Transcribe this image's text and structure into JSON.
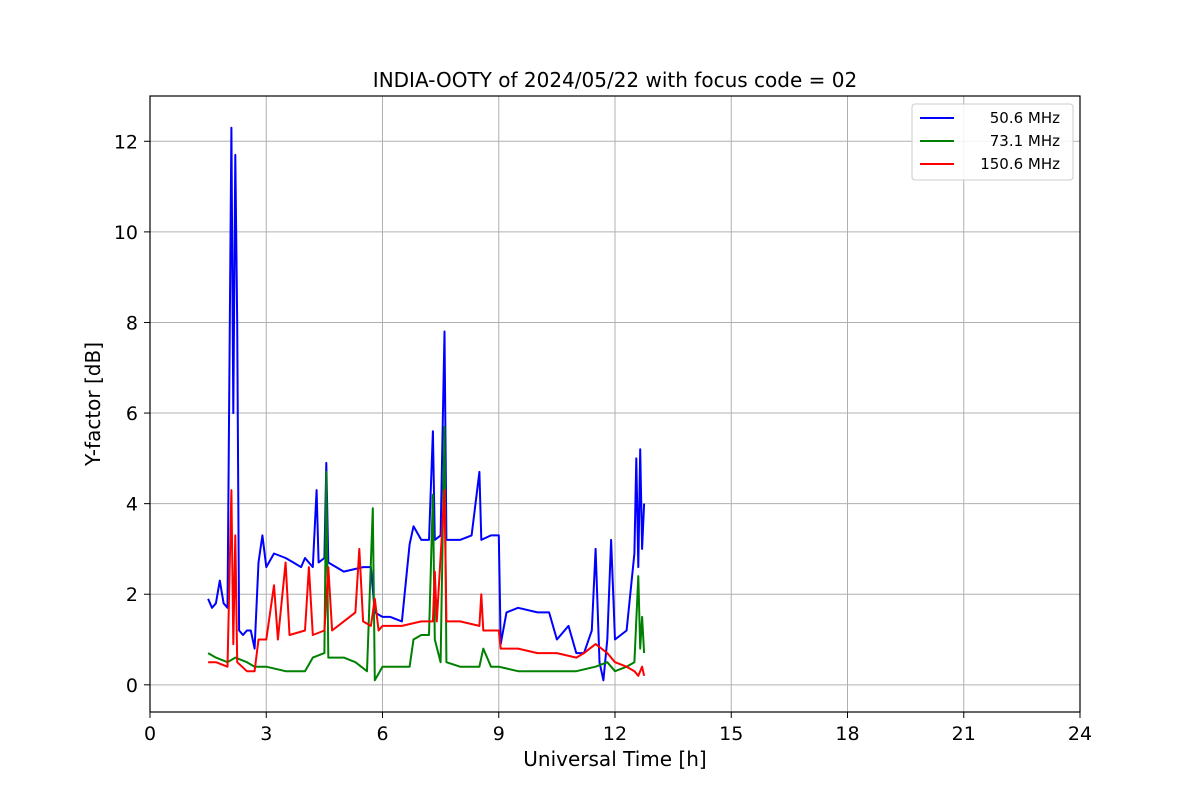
{
  "chart_data": {
    "type": "line",
    "title": "INDIA-OOTY of 2024/05/22 with focus code = 02",
    "xlabel": "Universal Time [h]",
    "ylabel": "Y-factor [dB]",
    "xlim": [
      0,
      24
    ],
    "ylim": [
      -0.6,
      13.0
    ],
    "xticks": [
      0,
      3,
      6,
      9,
      12,
      15,
      18,
      21,
      24
    ],
    "yticks": [
      0,
      2,
      4,
      6,
      8,
      10,
      12
    ],
    "grid": true,
    "legend_position": "upper right",
    "series": [
      {
        "name": "50.6 MHz",
        "color": "#0000ff",
        "points": [
          [
            1.5,
            1.9
          ],
          [
            1.6,
            1.7
          ],
          [
            1.7,
            1.8
          ],
          [
            1.8,
            2.3
          ],
          [
            1.9,
            1.8
          ],
          [
            2.0,
            1.7
          ],
          [
            2.1,
            12.3
          ],
          [
            2.15,
            6.0
          ],
          [
            2.2,
            11.7
          ],
          [
            2.25,
            8.0
          ],
          [
            2.3,
            1.2
          ],
          [
            2.4,
            1.1
          ],
          [
            2.5,
            1.2
          ],
          [
            2.6,
            1.2
          ],
          [
            2.7,
            0.8
          ],
          [
            2.8,
            2.7
          ],
          [
            2.9,
            3.3
          ],
          [
            3.0,
            2.6
          ],
          [
            3.2,
            2.9
          ],
          [
            3.5,
            2.8
          ],
          [
            3.7,
            2.7
          ],
          [
            3.9,
            2.6
          ],
          [
            4.0,
            2.8
          ],
          [
            4.2,
            2.6
          ],
          [
            4.3,
            4.3
          ],
          [
            4.35,
            2.7
          ],
          [
            4.5,
            2.8
          ],
          [
            4.55,
            4.9
          ],
          [
            4.6,
            2.7
          ],
          [
            5.0,
            2.5
          ],
          [
            5.5,
            2.6
          ],
          [
            5.7,
            2.6
          ],
          [
            5.8,
            1.6
          ],
          [
            6.0,
            1.5
          ],
          [
            6.2,
            1.5
          ],
          [
            6.5,
            1.4
          ],
          [
            6.7,
            3.1
          ],
          [
            6.8,
            3.5
          ],
          [
            7.0,
            3.2
          ],
          [
            7.2,
            3.2
          ],
          [
            7.3,
            5.6
          ],
          [
            7.35,
            3.2
          ],
          [
            7.5,
            3.3
          ],
          [
            7.6,
            7.8
          ],
          [
            7.65,
            3.2
          ],
          [
            8.0,
            3.2
          ],
          [
            8.3,
            3.3
          ],
          [
            8.5,
            4.7
          ],
          [
            8.55,
            3.2
          ],
          [
            8.8,
            3.3
          ],
          [
            9.0,
            3.3
          ],
          [
            9.05,
            0.9
          ],
          [
            9.2,
            1.6
          ],
          [
            9.5,
            1.7
          ],
          [
            10.0,
            1.6
          ],
          [
            10.3,
            1.6
          ],
          [
            10.5,
            1.0
          ],
          [
            10.8,
            1.3
          ],
          [
            11.0,
            0.7
          ],
          [
            11.2,
            0.7
          ],
          [
            11.4,
            1.2
          ],
          [
            11.5,
            3.0
          ],
          [
            11.6,
            0.5
          ],
          [
            11.7,
            0.1
          ],
          [
            11.8,
            1.0
          ],
          [
            11.9,
            3.2
          ],
          [
            12.0,
            1.0
          ],
          [
            12.3,
            1.2
          ],
          [
            12.5,
            2.9
          ],
          [
            12.55,
            5.0
          ],
          [
            12.6,
            2.6
          ],
          [
            12.65,
            5.2
          ],
          [
            12.7,
            3.0
          ],
          [
            12.75,
            4.0
          ]
        ]
      },
      {
        "name": "73.1 MHz",
        "color": "#008000",
        "points": [
          [
            1.5,
            0.7
          ],
          [
            1.7,
            0.6
          ],
          [
            2.0,
            0.5
          ],
          [
            2.2,
            0.6
          ],
          [
            2.5,
            0.5
          ],
          [
            2.7,
            0.4
          ],
          [
            3.0,
            0.4
          ],
          [
            3.5,
            0.3
          ],
          [
            3.8,
            0.3
          ],
          [
            4.0,
            0.3
          ],
          [
            4.2,
            0.6
          ],
          [
            4.5,
            0.7
          ],
          [
            4.55,
            4.7
          ],
          [
            4.6,
            0.6
          ],
          [
            5.0,
            0.6
          ],
          [
            5.3,
            0.5
          ],
          [
            5.6,
            0.3
          ],
          [
            5.75,
            3.9
          ],
          [
            5.8,
            0.1
          ],
          [
            6.0,
            0.4
          ],
          [
            6.5,
            0.4
          ],
          [
            6.7,
            0.4
          ],
          [
            6.8,
            1.0
          ],
          [
            7.0,
            1.1
          ],
          [
            7.2,
            1.1
          ],
          [
            7.3,
            4.2
          ],
          [
            7.35,
            1.0
          ],
          [
            7.5,
            0.5
          ],
          [
            7.6,
            5.7
          ],
          [
            7.65,
            0.5
          ],
          [
            8.0,
            0.4
          ],
          [
            8.5,
            0.4
          ],
          [
            8.6,
            0.8
          ],
          [
            8.8,
            0.4
          ],
          [
            9.0,
            0.4
          ],
          [
            9.5,
            0.3
          ],
          [
            10.0,
            0.3
          ],
          [
            10.5,
            0.3
          ],
          [
            11.0,
            0.3
          ],
          [
            11.5,
            0.4
          ],
          [
            11.8,
            0.5
          ],
          [
            12.0,
            0.3
          ],
          [
            12.3,
            0.4
          ],
          [
            12.5,
            0.5
          ],
          [
            12.6,
            2.4
          ],
          [
            12.65,
            0.8
          ],
          [
            12.7,
            1.5
          ],
          [
            12.75,
            0.7
          ]
        ]
      },
      {
        "name": "150.6 MHz",
        "color": "#ff0000",
        "points": [
          [
            1.5,
            0.5
          ],
          [
            1.7,
            0.5
          ],
          [
            2.0,
            0.4
          ],
          [
            2.1,
            4.3
          ],
          [
            2.15,
            0.9
          ],
          [
            2.2,
            3.3
          ],
          [
            2.25,
            0.5
          ],
          [
            2.5,
            0.3
          ],
          [
            2.7,
            0.3
          ],
          [
            2.8,
            1.0
          ],
          [
            3.0,
            1.0
          ],
          [
            3.2,
            2.2
          ],
          [
            3.3,
            1.0
          ],
          [
            3.5,
            2.7
          ],
          [
            3.6,
            1.1
          ],
          [
            4.0,
            1.2
          ],
          [
            4.1,
            2.6
          ],
          [
            4.2,
            1.1
          ],
          [
            4.5,
            1.2
          ],
          [
            4.6,
            2.6
          ],
          [
            4.7,
            1.2
          ],
          [
            5.0,
            1.4
          ],
          [
            5.3,
            1.6
          ],
          [
            5.4,
            3.0
          ],
          [
            5.5,
            1.4
          ],
          [
            5.7,
            1.3
          ],
          [
            5.8,
            1.9
          ],
          [
            5.9,
            1.2
          ],
          [
            6.0,
            1.3
          ],
          [
            6.5,
            1.3
          ],
          [
            7.0,
            1.4
          ],
          [
            7.3,
            1.4
          ],
          [
            7.35,
            2.5
          ],
          [
            7.4,
            1.4
          ],
          [
            7.6,
            4.3
          ],
          [
            7.65,
            1.4
          ],
          [
            8.0,
            1.4
          ],
          [
            8.5,
            1.3
          ],
          [
            8.55,
            2.0
          ],
          [
            8.6,
            1.2
          ],
          [
            9.0,
            1.2
          ],
          [
            9.05,
            0.8
          ],
          [
            9.5,
            0.8
          ],
          [
            10.0,
            0.7
          ],
          [
            10.5,
            0.7
          ],
          [
            11.0,
            0.6
          ],
          [
            11.2,
            0.7
          ],
          [
            11.5,
            0.9
          ],
          [
            11.8,
            0.7
          ],
          [
            12.0,
            0.5
          ],
          [
            12.3,
            0.4
          ],
          [
            12.5,
            0.3
          ],
          [
            12.6,
            0.2
          ],
          [
            12.7,
            0.4
          ],
          [
            12.75,
            0.2
          ]
        ]
      }
    ]
  }
}
